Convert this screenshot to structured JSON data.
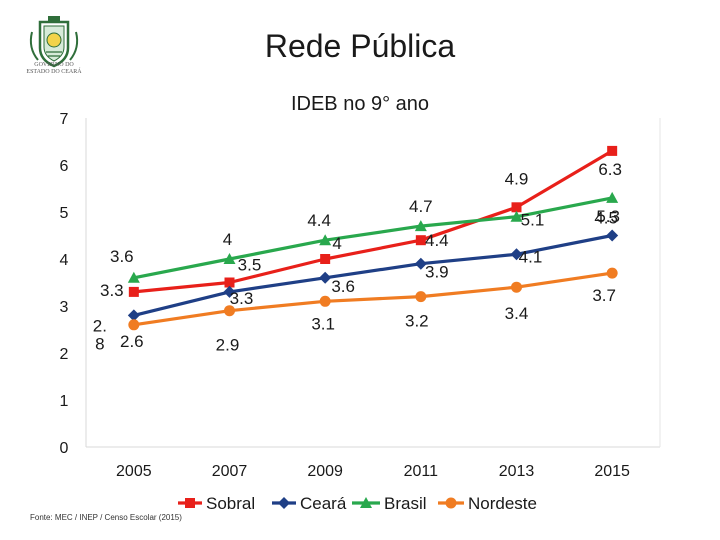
{
  "slide": {
    "title": "Rede Pública",
    "logo_caption_line1": "GOVERNO DO",
    "logo_caption_line2": "ESTADO DO CEARÁ",
    "source": "Fonte: MEC / INEP / Censo Escolar (2015)"
  },
  "chart_data": {
    "type": "line",
    "title": "IDEB no 9° ano",
    "xlabel": "",
    "ylabel": "",
    "x": [
      "2005",
      "2007",
      "2009",
      "2011",
      "2013",
      "2015"
    ],
    "ylim": [
      0,
      7
    ],
    "yticks": [
      "0",
      "1",
      "2",
      "3",
      "4",
      "5",
      "6",
      "7"
    ],
    "legend_position": "bottom",
    "series": [
      {
        "name": "Sobral",
        "color": "#e8201a",
        "marker": "square",
        "values": [
          3.3,
          3.5,
          4.0,
          4.4,
          5.1,
          6.3
        ],
        "labels": [
          "3.3",
          "3.5",
          "4",
          "4.4",
          "5.1",
          "6.3"
        ]
      },
      {
        "name": "Ceará",
        "color": "#1f3f86",
        "marker": "diamond",
        "values": [
          2.8,
          3.3,
          3.6,
          3.9,
          4.1,
          4.5
        ],
        "labels": [
          "2.\n8",
          "3.3",
          "3.6",
          "3.9",
          "4.1",
          "4.5"
        ]
      },
      {
        "name": "Brasil",
        "color": "#29a84d",
        "marker": "triangle",
        "values": [
          3.6,
          4.0,
          4.4,
          4.7,
          4.9,
          5.3
        ],
        "labels": [
          "3.6",
          "4",
          "4.4",
          "4.7",
          "4.9",
          "5.3"
        ]
      },
      {
        "name": "Nordeste",
        "color": "#f07c22",
        "marker": "circle",
        "values": [
          2.6,
          2.9,
          3.1,
          3.2,
          3.4,
          3.7
        ],
        "labels": [
          "2.6",
          "2.9",
          "3.1",
          "3.2",
          "3.4",
          "3.7"
        ]
      }
    ]
  }
}
